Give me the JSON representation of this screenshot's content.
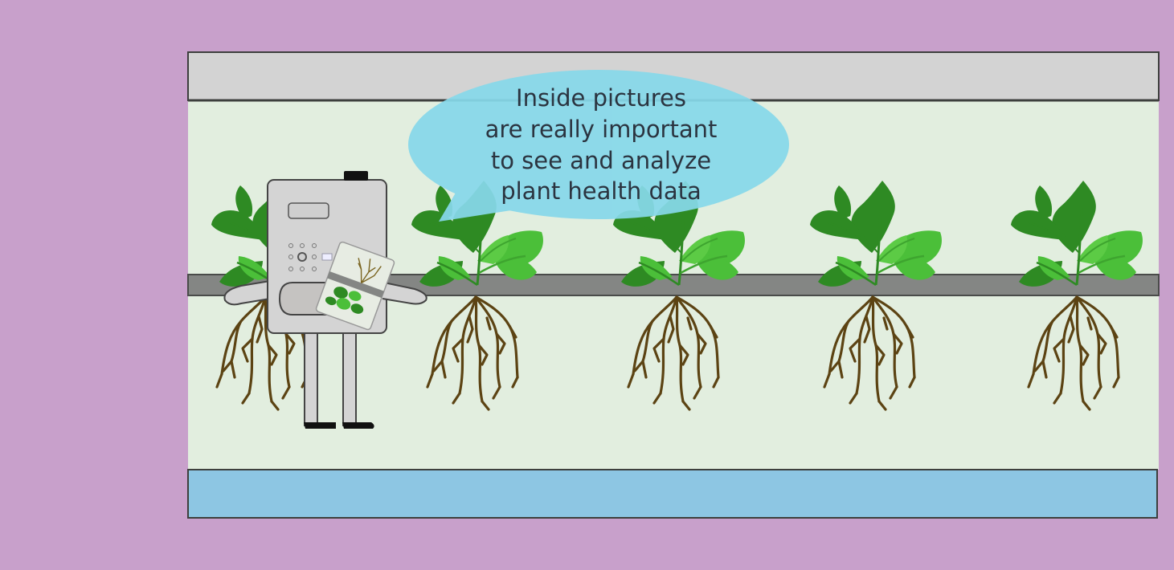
{
  "colors": {
    "background": "#c8a0cb",
    "tray_top": "#d3d3d3",
    "chamber": "#e2eedf",
    "rail": "#848684",
    "water": "#8dc6e3",
    "bubble": "#87d8ea",
    "leaf_dark": "#2e8a23",
    "leaf_light": "#4bbf39",
    "root": "#5c4313",
    "robot_body": "#d4d4d4",
    "robot_outline": "#444444"
  },
  "speech_bubble": {
    "lines": [
      "Inside pictures",
      "are really important",
      "to see and analyze",
      "plant health data"
    ]
  },
  "plants": {
    "count": 5
  },
  "robot": {
    "holding": "photo-card"
  }
}
